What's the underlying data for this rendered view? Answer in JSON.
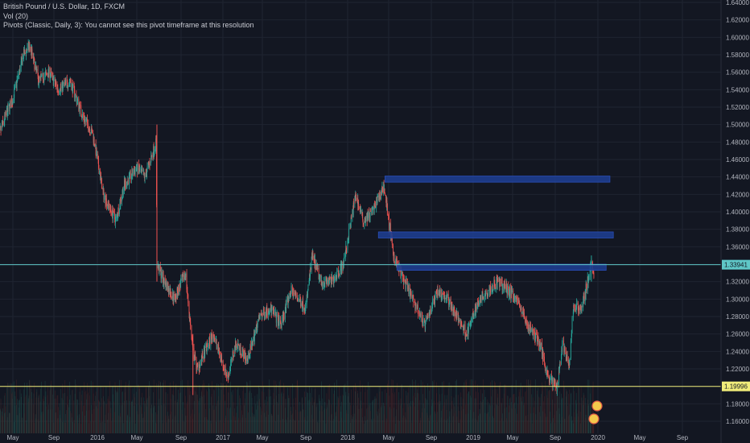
{
  "legend": {
    "symbol": "British Pound / U.S. Dollar, 1D, FXCM",
    "volume": "Vol (20)",
    "pivots": "Pivots (Classic, Daily, 3): You cannot see this pivot timeframe at this resolution"
  },
  "colors": {
    "background": "#131722",
    "up": "#26a69a",
    "down": "#ef5350",
    "zone": "#1e3d8f",
    "cyan_line": "#5fc7c7",
    "yellow_line": "#f0ec7a",
    "grid": "#1f2431"
  },
  "price_axis": {
    "ticks": [
      "1.64000",
      "1.62000",
      "1.60000",
      "1.58000",
      "1.56000",
      "1.54000",
      "1.52000",
      "1.50000",
      "1.48000",
      "1.46000",
      "1.44000",
      "1.42000",
      "1.40000",
      "1.38000",
      "1.36000",
      "1.34000",
      "1.32000",
      "1.30000",
      "1.28000",
      "1.26000",
      "1.24000",
      "1.22000",
      "1.20000",
      "1.18000",
      "1.16000"
    ],
    "current_label": "1.33941",
    "support_label": "1.19996"
  },
  "time_axis": {
    "ticks": [
      "May",
      "Sep",
      "2016",
      "May",
      "Sep",
      "2017",
      "May",
      "Sep",
      "2018",
      "May",
      "Sep",
      "2019",
      "May",
      "Sep",
      "2020",
      "May",
      "Sep"
    ]
  },
  "chart_data": {
    "type": "candlestick",
    "symbol": "GBPUSD",
    "timeframe": "1D",
    "x_range": [
      "2015-03",
      "2020-10"
    ],
    "y_range": [
      1.155,
      1.645
    ],
    "anchors": [
      [
        "2015-03-15",
        1.48
      ],
      [
        "2015-04-10",
        1.51
      ],
      [
        "2015-05-01",
        1.53
      ],
      [
        "2015-06-01",
        1.58
      ],
      [
        "2015-06-20",
        1.59
      ],
      [
        "2015-07-15",
        1.55
      ],
      [
        "2015-08-15",
        1.56
      ],
      [
        "2015-09-10",
        1.54
      ],
      [
        "2015-10-15",
        1.55
      ],
      [
        "2015-11-20",
        1.51
      ],
      [
        "2015-12-20",
        1.49
      ],
      [
        "2016-01-20",
        1.42
      ],
      [
        "2016-02-25",
        1.39
      ],
      [
        "2016-03-20",
        1.43
      ],
      [
        "2016-04-25",
        1.45
      ],
      [
        "2016-05-20",
        1.44
      ],
      [
        "2016-06-22",
        1.48
      ],
      [
        "2016-06-24",
        1.34
      ],
      [
        "2016-07-15",
        1.32
      ],
      [
        "2016-08-15",
        1.3
      ],
      [
        "2016-09-15",
        1.33
      ],
      [
        "2016-10-07",
        1.24
      ],
      [
        "2016-10-20",
        1.22
      ],
      [
        "2016-12-05",
        1.26
      ],
      [
        "2017-01-16",
        1.21
      ],
      [
        "2017-02-10",
        1.25
      ],
      [
        "2017-03-15",
        1.23
      ],
      [
        "2017-04-20",
        1.28
      ],
      [
        "2017-05-20",
        1.29
      ],
      [
        "2017-06-20",
        1.27
      ],
      [
        "2017-07-20",
        1.31
      ],
      [
        "2017-09-01",
        1.29
      ],
      [
        "2017-09-20",
        1.35
      ],
      [
        "2017-10-15",
        1.32
      ],
      [
        "2017-11-15",
        1.32
      ],
      [
        "2017-12-20",
        1.34
      ],
      [
        "2018-01-25",
        1.42
      ],
      [
        "2018-02-15",
        1.39
      ],
      [
        "2018-03-15",
        1.4
      ],
      [
        "2018-04-17",
        1.43
      ],
      [
        "2018-05-15",
        1.35
      ],
      [
        "2018-06-15",
        1.32
      ],
      [
        "2018-08-15",
        1.27
      ],
      [
        "2018-09-20",
        1.31
      ],
      [
        "2018-10-20",
        1.3
      ],
      [
        "2018-11-15",
        1.28
      ],
      [
        "2018-12-15",
        1.26
      ],
      [
        "2019-01-20",
        1.3
      ],
      [
        "2019-03-15",
        1.32
      ],
      [
        "2019-04-15",
        1.31
      ],
      [
        "2019-05-10",
        1.3
      ],
      [
        "2019-06-10",
        1.27
      ],
      [
        "2019-07-15",
        1.25
      ],
      [
        "2019-08-10",
        1.21
      ],
      [
        "2019-09-03",
        1.2
      ],
      [
        "2019-09-20",
        1.25
      ],
      [
        "2019-10-10",
        1.22
      ],
      [
        "2019-10-20",
        1.29
      ],
      [
        "2019-11-15",
        1.29
      ],
      [
        "2019-12-13",
        1.34
      ],
      [
        "2019-12-20",
        1.33
      ]
    ],
    "zones": [
      {
        "from": "2018-04-20",
        "to": "2020-02-05",
        "low": 1.434,
        "high": 1.441
      },
      {
        "from": "2018-04-01",
        "to": "2020-02-15",
        "low": 1.37,
        "high": 1.377
      },
      {
        "from": "2018-05-25",
        "to": "2020-01-25",
        "low": 1.333,
        "high": 1.34
      }
    ],
    "horizontal_lines": [
      {
        "price": 1.33941,
        "color": "#5fc7c7"
      },
      {
        "price": 1.19996,
        "color": "#f0ec7a"
      }
    ],
    "grid": true
  }
}
